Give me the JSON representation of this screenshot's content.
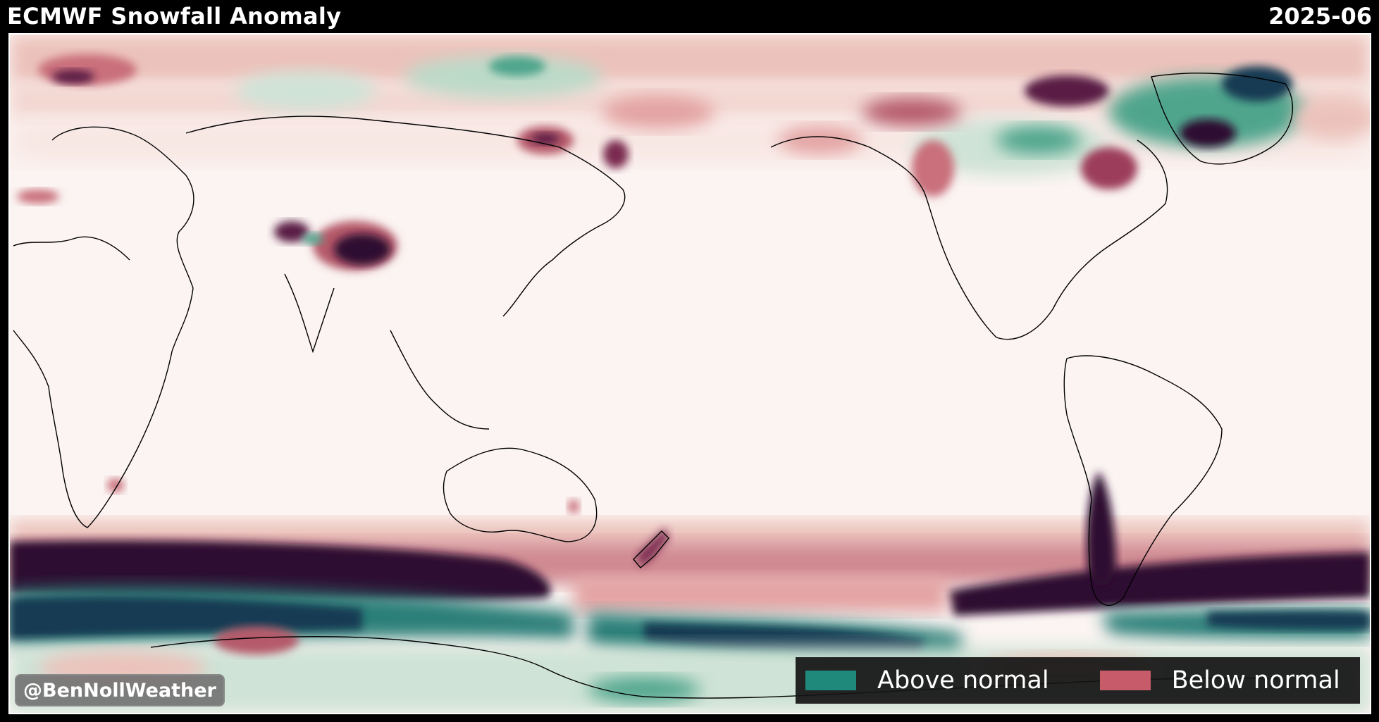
{
  "header": {
    "title": "ECMWF Snowfall Anomaly",
    "date": "2025-06"
  },
  "credit": {
    "text": "@BenNollWeather"
  },
  "legend": {
    "items": [
      {
        "label": "Above normal",
        "color": "#1f8a7c"
      },
      {
        "label": "Below normal",
        "color": "#c75b6a"
      }
    ]
  },
  "colors": {
    "background": "#000000",
    "ocean_land_base": "#fbf4f2",
    "above_normal_light": "#cfe3d6",
    "above_normal_mid": "#4fa58c",
    "above_normal_dark": "#123a52",
    "below_normal_light": "#ecc2bc",
    "below_normal_mid": "#b55a6a",
    "below_normal_dark": "#2f0f33",
    "coastlines": "#000000"
  }
}
